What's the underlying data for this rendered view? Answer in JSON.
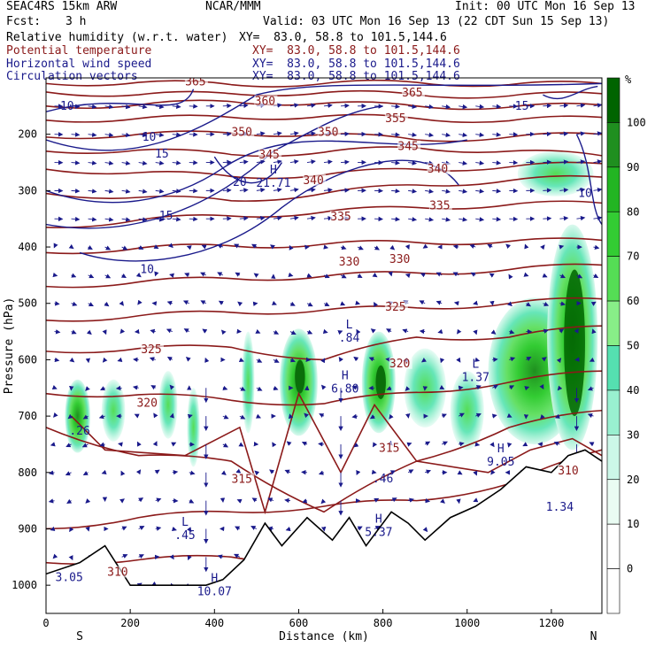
{
  "header": {
    "model": "SEAC4RS 15km ARW",
    "center": "NCAR/MMM",
    "init": "Init: 00 UTC Mon 16 Sep 13",
    "fcst_label": "Fcst:",
    "fcst_value": "3 h",
    "valid": "Valid: 03 UTC Mon 16 Sep 13 (22 CDT Sun 15 Sep 13)"
  },
  "fields": [
    {
      "name": "Relative humidity (w.r.t. water)",
      "xy": "XY=  83.0, 58.8 to 101.5,144.6",
      "color": "#000000"
    },
    {
      "name": "Potential temperature",
      "xy": "XY=  83.0, 58.8 to 101.5,144.6",
      "color": "#8b1a1a"
    },
    {
      "name": "Horizontal wind speed",
      "xy": "XY=  83.0, 58.8 to 101.5,144.6",
      "color": "#1a1a8b"
    },
    {
      "name": "Circulation vectors",
      "xy": "XY=  83.0, 58.8 to 101.5,144.6",
      "color": "#1a1a8b"
    }
  ],
  "chart_data": {
    "type": "heatmap",
    "xlabel": "Distance (km)",
    "ylabel": "Pressure (hPa)",
    "x_ticks": [
      0,
      200,
      400,
      600,
      800,
      1000,
      1200
    ],
    "y_ticks": [
      200,
      300,
      400,
      500,
      600,
      700,
      800,
      900,
      1000
    ],
    "xlim": [
      0,
      1320
    ],
    "ylim": [
      1050,
      100
    ],
    "x_end_labels": {
      "left": "S",
      "right": "N"
    },
    "colorbar": {
      "unit": "%",
      "ticks": [
        100,
        90,
        80,
        70,
        60,
        50,
        40,
        30,
        20,
        10,
        0
      ],
      "colors": [
        "#006400",
        "#1f8f1f",
        "#22b522",
        "#33cc33",
        "#55dd55",
        "#88ee88",
        "#55e0b0",
        "#99f0d0",
        "#ccf7e8",
        "#eafcf3",
        "#ffffff",
        "#ffffff"
      ]
    },
    "theta_labels": [
      {
        "v": "365",
        "x": 355,
        "p": 110
      },
      {
        "v": "365",
        "x": 870,
        "p": 130
      },
      {
        "v": "360",
        "x": 520,
        "p": 145
      },
      {
        "v": "355",
        "x": 830,
        "p": 175
      },
      {
        "v": "350",
        "x": 465,
        "p": 200
      },
      {
        "v": "350",
        "x": 670,
        "p": 200
      },
      {
        "v": "345",
        "x": 860,
        "p": 225
      },
      {
        "v": "345",
        "x": 530,
        "p": 240
      },
      {
        "v": "340",
        "x": 635,
        "p": 285
      },
      {
        "v": "340",
        "x": 930,
        "p": 265
      },
      {
        "v": "335",
        "x": 700,
        "p": 350
      },
      {
        "v": "335",
        "x": 935,
        "p": 330
      },
      {
        "v": "330",
        "x": 720,
        "p": 430
      },
      {
        "v": "330",
        "x": 840,
        "p": 425
      },
      {
        "v": "325",
        "x": 250,
        "p": 585
      },
      {
        "v": "325",
        "x": 830,
        "p": 510
      },
      {
        "v": "320",
        "x": 240,
        "p": 680
      },
      {
        "v": "320",
        "x": 840,
        "p": 610
      },
      {
        "v": "315",
        "x": 465,
        "p": 815
      },
      {
        "v": "315",
        "x": 815,
        "p": 760
      },
      {
        "v": "310",
        "x": 1240,
        "p": 800
      },
      {
        "v": "310",
        "x": 170,
        "p": 980
      }
    ],
    "speed_labels": [
      {
        "v": "10",
        "x": 50,
        "p": 150
      },
      {
        "v": "10",
        "x": 245,
        "p": 205
      },
      {
        "v": "10",
        "x": 240,
        "p": 440
      },
      {
        "v": "15",
        "x": 275,
        "p": 235
      },
      {
        "v": "15",
        "x": 285,
        "p": 345
      },
      {
        "v": "15",
        "x": 1130,
        "p": 150
      },
      {
        "v": "20",
        "x": 460,
        "p": 285
      },
      {
        "v": "10",
        "x": 1280,
        "p": 305
      }
    ],
    "extrema": [
      {
        "t": "H",
        "v": "21.71",
        "x": 540,
        "p": 285
      },
      {
        "t": "L",
        "v": ".84",
        "x": 720,
        "p": 560
      },
      {
        "t": "H",
        "v": "6.80",
        "x": 710,
        "p": 650
      },
      {
        "t": "L",
        "v": "1.37",
        "x": 1020,
        "p": 630
      },
      {
        "t": "H",
        "v": "9.05",
        "x": 1080,
        "p": 780
      },
      {
        "t": "L",
        "v": ".45",
        "x": 330,
        "p": 910
      },
      {
        "t": "H",
        "v": "5.37",
        "x": 790,
        "p": 905
      },
      {
        "t": "H",
        "v": "10.07",
        "x": 400,
        "p": 1010
      },
      {
        "t": "",
        "v": ".26",
        "x": 80,
        "p": 725
      },
      {
        "t": "",
        "v": ".46",
        "x": 800,
        "p": 810
      },
      {
        "t": "",
        "v": "3.05",
        "x": 55,
        "p": 985
      },
      {
        "t": "",
        "v": "1.34",
        "x": 1220,
        "p": 860
      }
    ]
  }
}
